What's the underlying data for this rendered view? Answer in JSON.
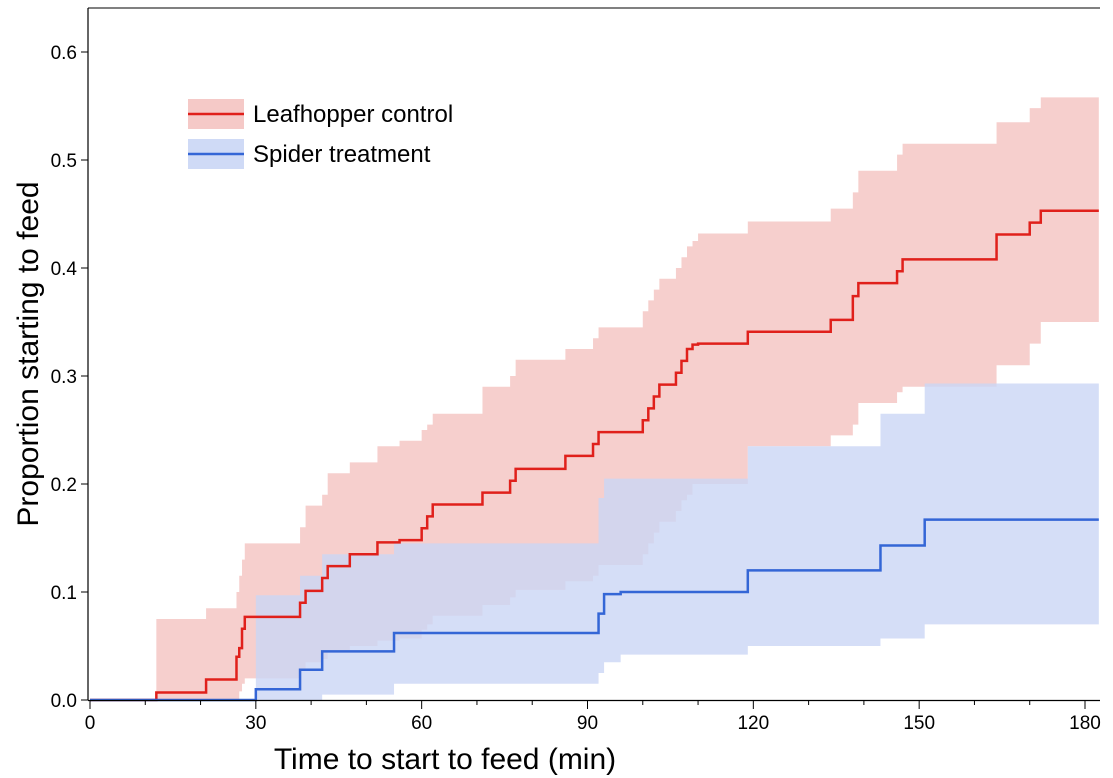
{
  "chart_data": {
    "type": "line",
    "subtype": "kaplan-meier step curves with confidence bands",
    "title": "",
    "xlabel": "Time to start to feed (min)",
    "ylabel": "Proportion starting to feed",
    "xlim": [
      0,
      183
    ],
    "ylim": [
      0,
      0.65
    ],
    "x_ticks": [
      0,
      30,
      60,
      90,
      120,
      150,
      180
    ],
    "y_ticks": [
      0.0,
      0.1,
      0.2,
      0.3,
      0.4,
      0.5,
      0.6
    ],
    "y_tick_labels": [
      "0.0",
      "0.1",
      "0.2",
      "0.3",
      "0.4",
      "0.5",
      "0.6"
    ],
    "grid": false,
    "legend_position": "top-left",
    "series": [
      {
        "name": "Leafhopper control",
        "color": "#e0201b",
        "band_color": "#f4c3c1",
        "x": [
          0,
          12,
          21,
          26.5,
          27,
          27.5,
          28,
          38,
          39,
          42,
          43,
          47,
          48,
          52,
          56,
          60,
          61,
          62,
          70,
          71,
          76,
          77,
          86,
          87,
          91,
          92,
          100,
          101,
          102,
          103,
          104,
          106,
          107,
          108,
          109,
          110,
          119,
          120,
          134,
          135,
          138,
          139,
          146,
          147,
          163,
          164,
          169,
          170,
          172,
          182.5
        ],
        "y": [
          0,
          0.007,
          0.019,
          0.04,
          0.048,
          0.066,
          0.077,
          0.09,
          0.101,
          0.113,
          0.124,
          0.135,
          0.135,
          0.146,
          0.148,
          0.159,
          0.17,
          0.181,
          0.181,
          0.192,
          0.203,
          0.214,
          0.226,
          0.226,
          0.237,
          0.248,
          0.259,
          0.27,
          0.281,
          0.292,
          0.292,
          0.303,
          0.314,
          0.325,
          0.329,
          0.33,
          0.341,
          0.341,
          0.352,
          0.352,
          0.374,
          0.386,
          0.397,
          0.408,
          0.408,
          0.431,
          0.431,
          0.442,
          0.453,
          0.453
        ],
        "lower": [
          0,
          0,
          0,
          0,
          0.008,
          0.015,
          0.02,
          0.028,
          0.035,
          0.038,
          0.045,
          0.05,
          0.05,
          0.055,
          0.057,
          0.065,
          0.07,
          0.078,
          0.078,
          0.088,
          0.095,
          0.102,
          0.11,
          0.11,
          0.115,
          0.125,
          0.135,
          0.145,
          0.155,
          0.165,
          0.165,
          0.175,
          0.185,
          0.19,
          0.2,
          0.2,
          0.235,
          0.235,
          0.245,
          0.245,
          0.255,
          0.275,
          0.285,
          0.29,
          0.29,
          0.31,
          0.31,
          0.33,
          0.35,
          0.353
        ],
        "upper": [
          0,
          0.075,
          0.085,
          0.1,
          0.115,
          0.13,
          0.145,
          0.16,
          0.18,
          0.19,
          0.21,
          0.22,
          0.22,
          0.235,
          0.24,
          0.25,
          0.255,
          0.265,
          0.265,
          0.29,
          0.3,
          0.315,
          0.325,
          0.325,
          0.335,
          0.345,
          0.36,
          0.37,
          0.38,
          0.39,
          0.39,
          0.4,
          0.41,
          0.42,
          0.425,
          0.432,
          0.443,
          0.443,
          0.455,
          0.455,
          0.47,
          0.49,
          0.505,
          0.515,
          0.515,
          0.535,
          0.535,
          0.548,
          0.558,
          0.558
        ]
      },
      {
        "name": "Spider treatment",
        "color": "#3466d6",
        "band_color": "#cad6f5",
        "x": [
          0,
          30,
          38,
          42,
          55,
          92,
          93,
          96,
          119,
          143,
          151,
          182.5
        ],
        "y": [
          0,
          0.01,
          0.028,
          0.045,
          0.062,
          0.08,
          0.098,
          0.1,
          0.12,
          0.143,
          0.167,
          0.167
        ],
        "lower": [
          0,
          0,
          0,
          0.005,
          0.015,
          0.025,
          0.035,
          0.042,
          0.05,
          0.057,
          0.07,
          0.087
        ],
        "upper": [
          0,
          0.097,
          0.115,
          0.135,
          0.145,
          0.187,
          0.205,
          0.205,
          0.235,
          0.265,
          0.293,
          0.293
        ]
      }
    ]
  }
}
